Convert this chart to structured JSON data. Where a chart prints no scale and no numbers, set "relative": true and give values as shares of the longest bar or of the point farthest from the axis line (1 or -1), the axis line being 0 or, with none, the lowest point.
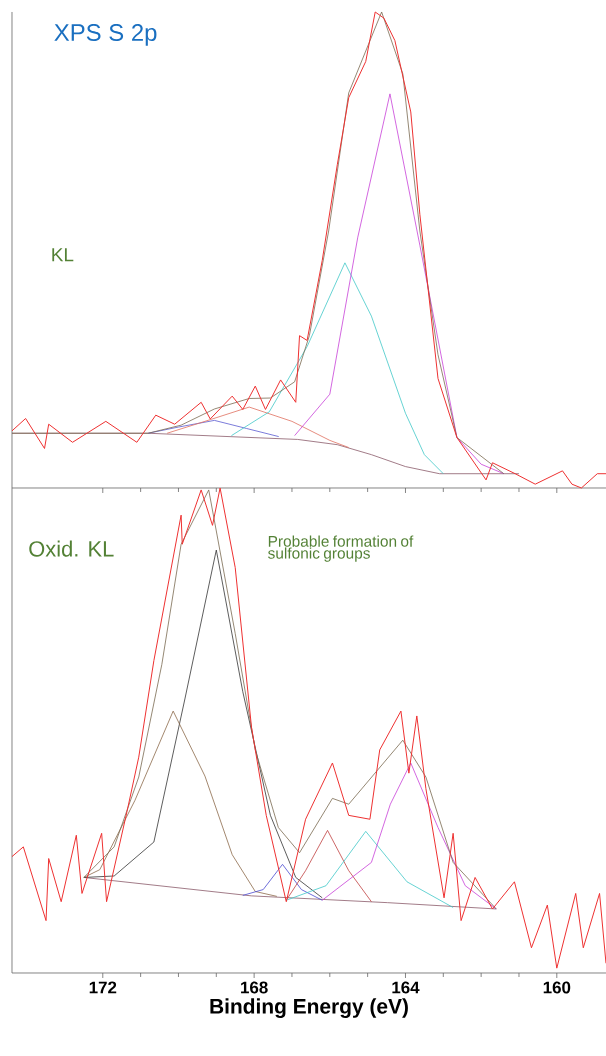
{
  "chart_data": [
    {
      "type": "line",
      "title": "XPS S 2p",
      "annotations": [
        "KL"
      ],
      "relative": true,
      "xlim": [
        174.4,
        158.7
      ],
      "xticks": [
        172,
        168,
        164,
        160
      ],
      "tick_labels": false,
      "series": [
        {
          "color": "#8a5a6a",
          "x": [
            174.4,
            170.8,
            166.85,
            165.8,
            164.9,
            164.0,
            163.1,
            161.0
          ],
          "values": [
            0.115,
            0.115,
            0.102,
            0.091,
            0.07,
            0.045,
            0.03,
            0.03
          ]
        },
        {
          "color": "#5a5ad0",
          "x": [
            170.8,
            170.0,
            169.05,
            168.2,
            167.35
          ],
          "values": [
            0.115,
            0.128,
            0.142,
            0.125,
            0.108
          ]
        },
        {
          "color": "#e07060",
          "x": [
            170.3,
            169.3,
            168.13,
            167.0,
            166.0,
            165.5
          ],
          "values": [
            0.115,
            0.14,
            0.17,
            0.14,
            0.1,
            0.085
          ]
        },
        {
          "color": "#40c8c8",
          "x": [
            168.6,
            167.6,
            166.6,
            165.6,
            164.9,
            164.0,
            163.5,
            163.0
          ],
          "values": [
            0.11,
            0.16,
            0.297,
            0.473,
            0.361,
            0.157,
            0.07,
            0.03
          ]
        },
        {
          "color": "#c840d8",
          "x": [
            166.93,
            166.0,
            165.26,
            164.41,
            163.62,
            162.64,
            162.0,
            161.4
          ],
          "values": [
            0.11,
            0.197,
            0.527,
            0.828,
            0.51,
            0.106,
            0.05,
            0.03
          ]
        },
        {
          "color": "#7a6a50",
          "x": [
            174.4,
            170.8,
            169.93,
            169.05,
            168.13,
            167.57,
            166.93,
            166.54,
            166.03,
            165.5,
            164.63,
            164.07,
            163.62,
            163.14,
            162.64,
            161.4
          ],
          "values": [
            0.115,
            0.115,
            0.132,
            0.166,
            0.188,
            0.189,
            0.223,
            0.32,
            0.54,
            0.83,
            1.0,
            0.87,
            0.54,
            0.28,
            0.106,
            0.03
          ]
        },
        {
          "color": "#ee3030",
          "x": [
            174.4,
            174.04,
            173.54,
            173.43,
            172.8,
            171.92,
            171.1,
            170.6,
            170.1,
            169.4,
            169.16,
            168.58,
            168.3,
            167.97,
            167.7,
            167.3,
            166.9,
            166.8,
            166.6,
            166.2,
            165.8,
            165.5,
            165.05,
            164.8,
            164.57,
            164.28,
            163.86,
            163.62,
            163.14,
            162.64,
            161.87,
            161.7,
            161.1,
            160.57,
            159.85,
            159.6,
            159.35,
            158.93,
            158.7
          ],
          "values": [
            0.12,
            0.146,
            0.083,
            0.134,
            0.096,
            0.14,
            0.096,
            0.153,
            0.134,
            0.18,
            0.145,
            0.193,
            0.165,
            0.214,
            0.165,
            0.227,
            0.18,
            0.32,
            0.31,
            0.478,
            0.68,
            0.82,
            0.896,
            1.0,
            0.987,
            0.94,
            0.79,
            0.575,
            0.23,
            0.106,
            0.017,
            0.053,
            0.03,
            0.008,
            0.036,
            0.008,
            0.0,
            0.03,
            0.03
          ]
        }
      ]
    },
    {
      "type": "line",
      "annotations": [
        "Oxid. KL",
        "Probable formation of sulfonic groups"
      ],
      "xlabel": "Binding Energy (eV)",
      "relative": true,
      "xlim": [
        174.4,
        158.7
      ],
      "xticks": [
        172,
        168,
        164,
        160
      ],
      "tick_labels": "x",
      "series": [
        {
          "color": "#8a5a6a",
          "x": [
            172.5,
            168.07,
            164.47,
            161.6
          ],
          "values": [
            0.197,
            0.159,
            0.145,
            0.132
          ]
        },
        {
          "color": "#333333",
          "x": [
            172.5,
            171.7,
            170.65,
            169.83,
            169.0,
            168.3,
            167.57,
            166.9,
            166.2
          ],
          "values": [
            0.197,
            0.2,
            0.27,
            0.565,
            0.872,
            0.58,
            0.325,
            0.197,
            0.155
          ]
        },
        {
          "color": "#8b6a4a",
          "x": [
            172.5,
            172.08,
            171.15,
            170.14,
            169.3,
            168.58,
            167.97,
            167.4
          ],
          "values": [
            0.197,
            0.213,
            0.356,
            0.54,
            0.406,
            0.244,
            0.168,
            0.158
          ]
        },
        {
          "color": "#4a4ad0",
          "x": [
            168.3,
            167.76,
            167.25,
            166.75,
            166.2
          ],
          "values": [
            0.16,
            0.172,
            0.224,
            0.172,
            0.15
          ]
        },
        {
          "color": "#c04040",
          "x": [
            167.15,
            166.64,
            166.06,
            165.5,
            164.9
          ],
          "values": [
            0.15,
            0.211,
            0.294,
            0.211,
            0.147
          ]
        },
        {
          "color": "#40c8c8",
          "x": [
            167.15,
            166.1,
            165.05,
            163.96,
            162.74
          ],
          "values": [
            0.15,
            0.18,
            0.292,
            0.188,
            0.135
          ]
        },
        {
          "color": "#c840d8",
          "x": [
            166.2,
            164.9,
            164.4,
            163.86,
            163.14,
            162.42,
            161.6
          ],
          "values": [
            0.15,
            0.228,
            0.348,
            0.433,
            0.3,
            0.18,
            0.132
          ]
        },
        {
          "color": "#7a6a50",
          "x": [
            172.5,
            171.7,
            171.05,
            170.44,
            169.93,
            169.2,
            168.5,
            167.97,
            167.36,
            166.8,
            165.93,
            165.5,
            164.07,
            163.46,
            162.74,
            161.6
          ],
          "values": [
            0.197,
            0.26,
            0.404,
            0.636,
            0.884,
            0.996,
            0.7,
            0.46,
            0.3,
            0.248,
            0.36,
            0.348,
            0.48,
            0.404,
            0.228,
            0.132
          ]
        },
        {
          "color": "#ee3030",
          "x": [
            174.4,
            174.1,
            173.5,
            173.43,
            173.1,
            172.7,
            172.55,
            172.03,
            171.9,
            171.36,
            171.05,
            170.65,
            169.93,
            169.9,
            169.4,
            169.1,
            168.9,
            168.5,
            168.07,
            167.68,
            167.15,
            166.64,
            165.93,
            165.5,
            164.94,
            164.68,
            164.12,
            163.91,
            163.7,
            163.46,
            162.98,
            162.74,
            162.53,
            162.16,
            161.7,
            161.12,
            160.67,
            160.25,
            160.0,
            159.5,
            159.3,
            158.87,
            158.7
          ],
          "values": [
            0.24,
            0.26,
            0.108,
            0.236,
            0.147,
            0.284,
            0.164,
            0.288,
            0.147,
            0.333,
            0.445,
            0.644,
            0.944,
            0.884,
            0.996,
            0.923,
            1.0,
            0.836,
            0.507,
            0.325,
            0.147,
            0.317,
            0.433,
            0.325,
            0.317,
            0.46,
            0.54,
            0.412,
            0.53,
            0.38,
            0.155,
            0.288,
            0.108,
            0.197,
            0.132,
            0.188,
            0.052,
            0.14,
            0.01,
            0.164,
            0.052,
            0.164,
            0.02
          ]
        }
      ]
    }
  ]
}
